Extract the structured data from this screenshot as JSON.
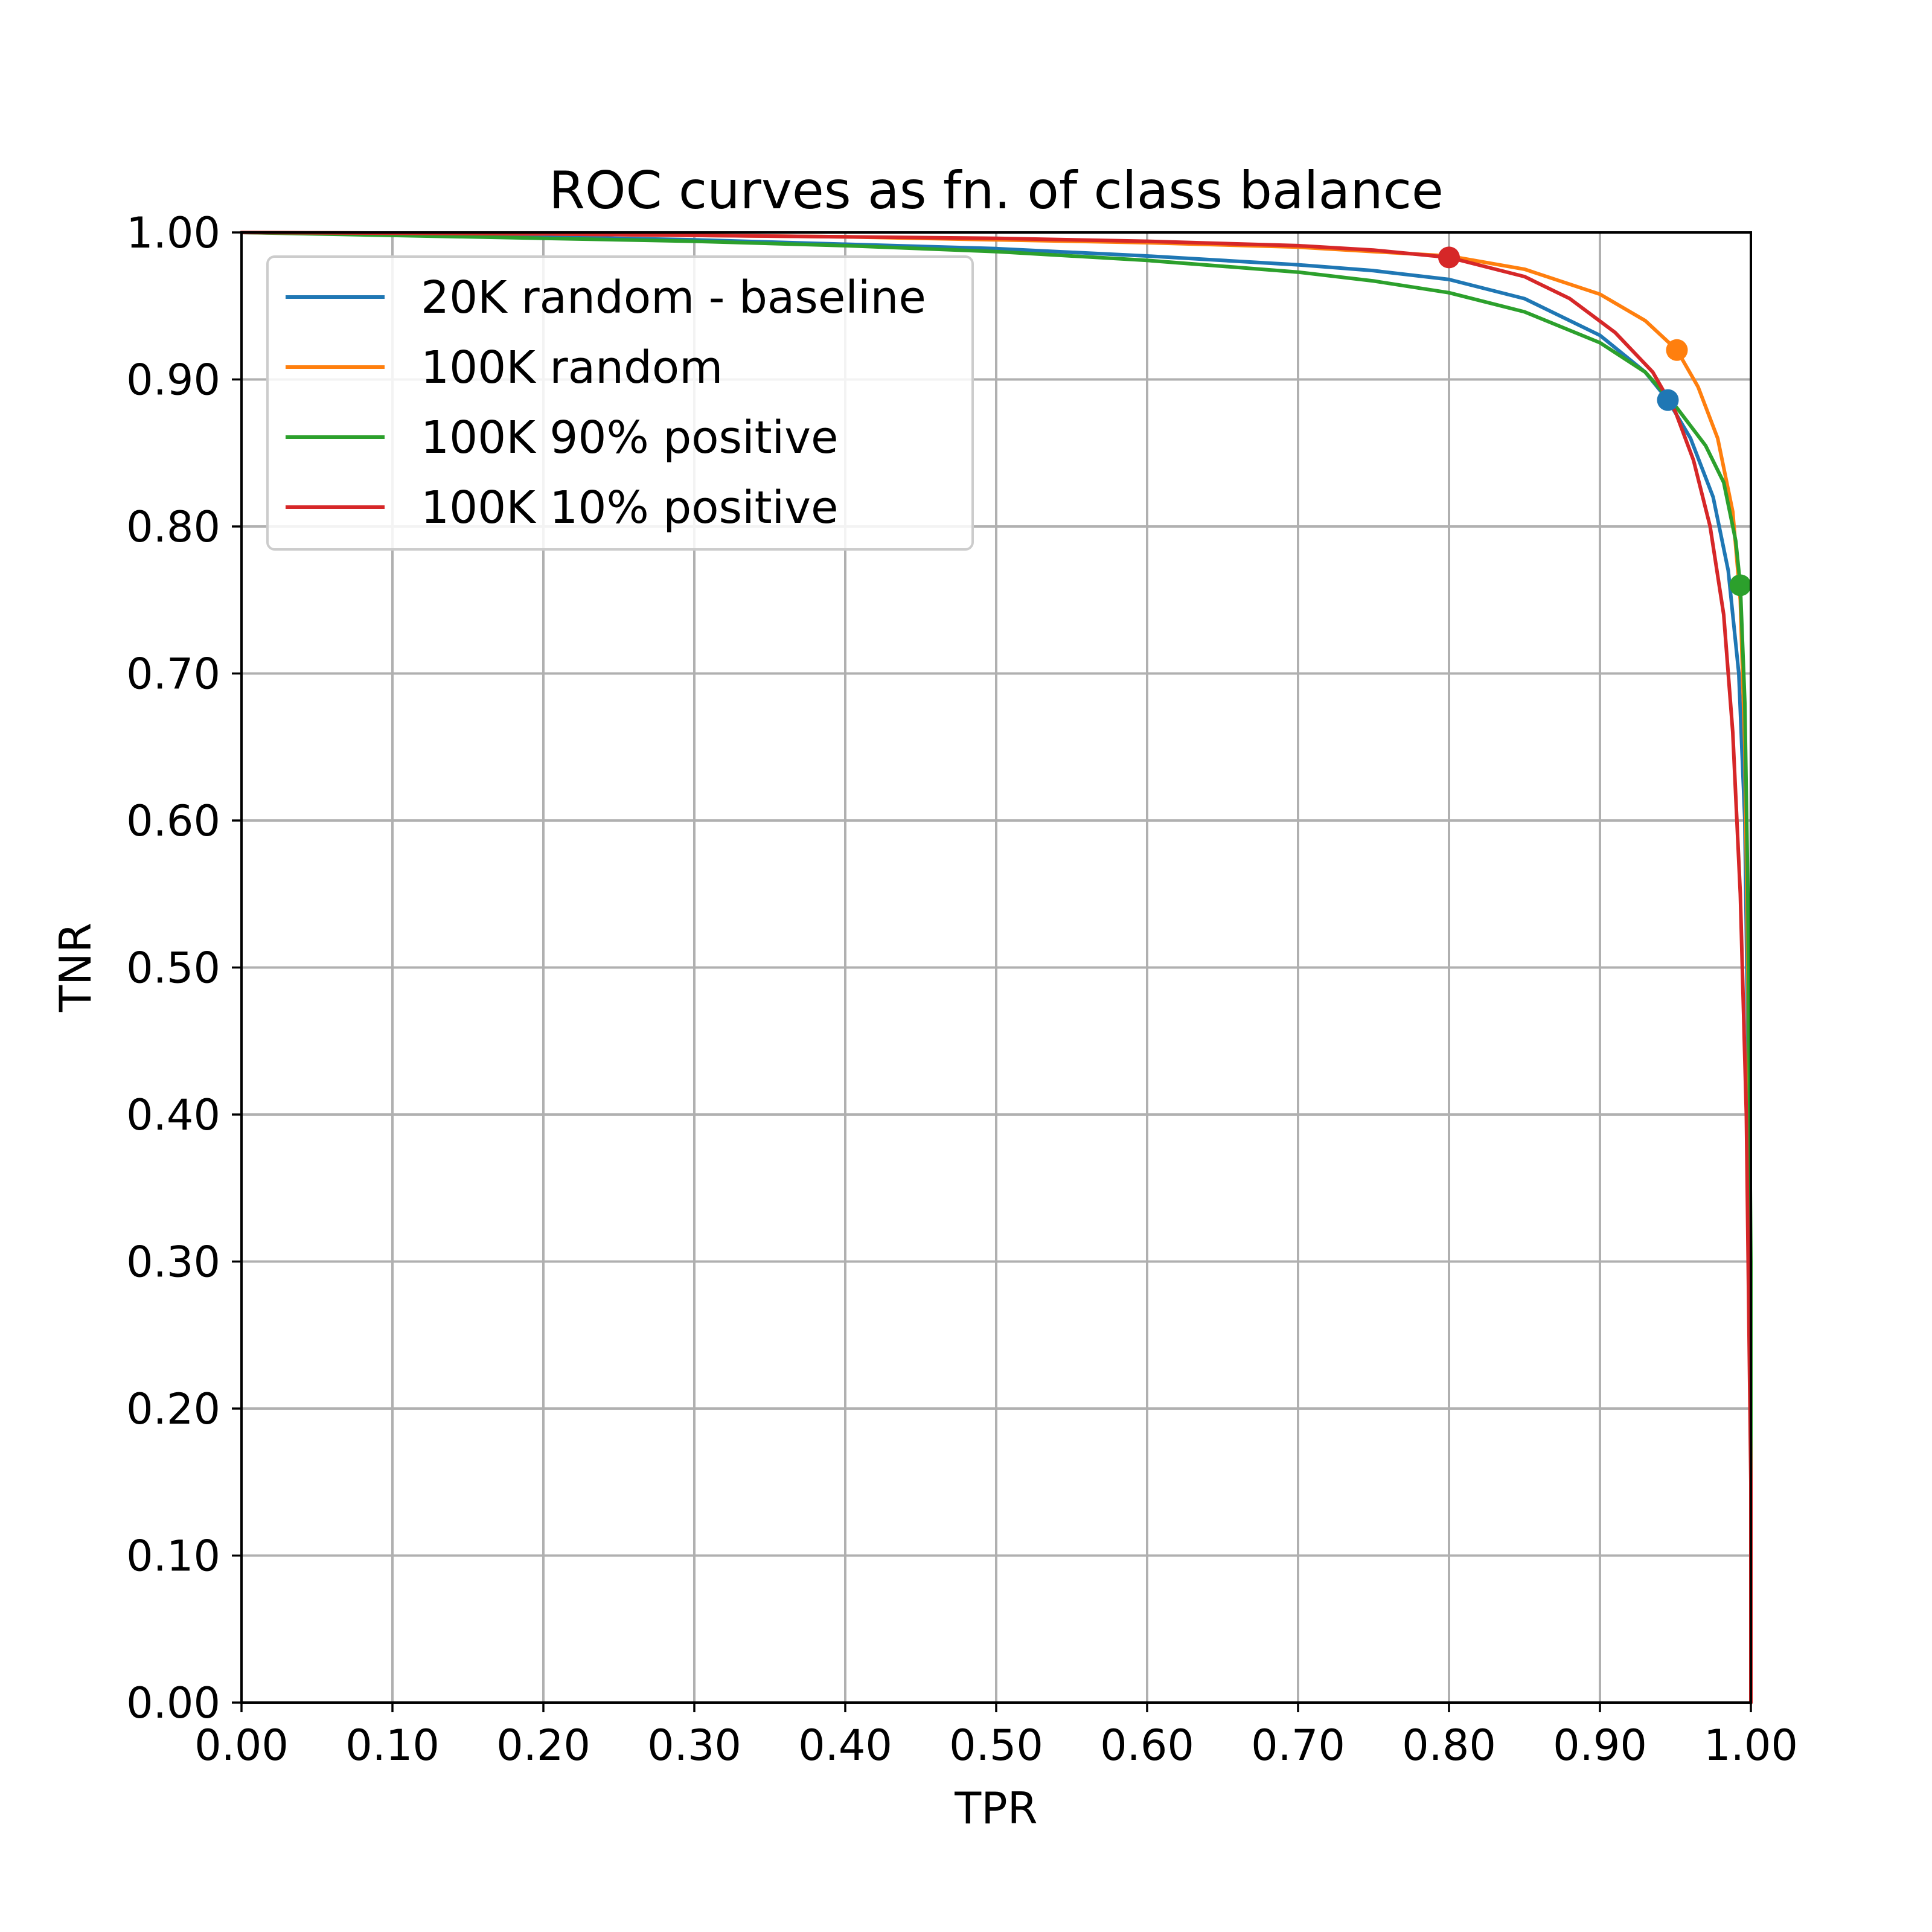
{
  "chart_data": {
    "type": "line",
    "title": "ROC curves as fn. of class balance",
    "xlabel": "TPR",
    "ylabel": "TNR",
    "xlim": [
      0,
      1
    ],
    "ylim": [
      0,
      1
    ],
    "xticks": [
      "0.00",
      "0.10",
      "0.20",
      "0.30",
      "0.40",
      "0.50",
      "0.60",
      "0.70",
      "0.80",
      "0.90",
      "1.00"
    ],
    "yticks": [
      "0.00",
      "0.10",
      "0.20",
      "0.30",
      "0.40",
      "0.50",
      "0.60",
      "0.70",
      "0.80",
      "0.90",
      "1.00"
    ],
    "grid": true,
    "legend_position": "top-left",
    "series": [
      {
        "name": "20K random - baseline",
        "color": "#1f77b4",
        "x": [
          0,
          0.1,
          0.2,
          0.3,
          0.4,
          0.5,
          0.6,
          0.7,
          0.75,
          0.8,
          0.85,
          0.9,
          0.93,
          0.945,
          0.96,
          0.975,
          0.985,
          0.992,
          0.996,
          0.998,
          1.0,
          1.0
        ],
        "y": [
          1.0,
          0.9985,
          0.997,
          0.995,
          0.992,
          0.989,
          0.984,
          0.978,
          0.974,
          0.968,
          0.955,
          0.93,
          0.905,
          0.886,
          0.86,
          0.82,
          0.77,
          0.7,
          0.6,
          0.45,
          0.2,
          0.0
        ],
        "marker": {
          "x": 0.945,
          "y": 0.886
        }
      },
      {
        "name": "100K random",
        "color": "#ff7f0e",
        "x": [
          0,
          0.1,
          0.2,
          0.3,
          0.4,
          0.5,
          0.6,
          0.7,
          0.75,
          0.8,
          0.85,
          0.9,
          0.93,
          0.951,
          0.965,
          0.978,
          0.988,
          0.993,
          0.996,
          0.998,
          1.0,
          1.0
        ],
        "y": [
          1.0,
          0.9995,
          0.999,
          0.998,
          0.997,
          0.995,
          0.993,
          0.99,
          0.987,
          0.984,
          0.975,
          0.958,
          0.94,
          0.92,
          0.895,
          0.86,
          0.81,
          0.75,
          0.65,
          0.5,
          0.25,
          0.0
        ],
        "marker": {
          "x": 0.951,
          "y": 0.92
        }
      },
      {
        "name": "100K 90% positive",
        "color": "#2ca02c",
        "x": [
          0,
          0.1,
          0.2,
          0.3,
          0.4,
          0.5,
          0.6,
          0.7,
          0.75,
          0.8,
          0.85,
          0.9,
          0.93,
          0.95,
          0.97,
          0.982,
          0.99,
          0.993,
          0.996,
          0.998,
          1.0,
          1.0
        ],
        "y": [
          1.0,
          0.998,
          0.996,
          0.994,
          0.991,
          0.987,
          0.981,
          0.973,
          0.967,
          0.959,
          0.946,
          0.925,
          0.905,
          0.882,
          0.855,
          0.83,
          0.79,
          0.76,
          0.68,
          0.55,
          0.3,
          0.0
        ],
        "marker": {
          "x": 0.993,
          "y": 0.76
        }
      },
      {
        "name": "100K 10% positive",
        "color": "#d62728",
        "x": [
          0,
          0.1,
          0.2,
          0.3,
          0.4,
          0.5,
          0.6,
          0.7,
          0.75,
          0.8,
          0.85,
          0.88,
          0.91,
          0.935,
          0.95,
          0.962,
          0.973,
          0.982,
          0.988,
          0.993,
          0.997,
          1.0,
          1.0
        ],
        "y": [
          1.0,
          0.9995,
          0.999,
          0.998,
          0.997,
          0.996,
          0.994,
          0.991,
          0.988,
          0.983,
          0.97,
          0.955,
          0.932,
          0.905,
          0.878,
          0.845,
          0.8,
          0.74,
          0.66,
          0.55,
          0.4,
          0.15,
          0.0
        ],
        "marker": {
          "x": 0.8,
          "y": 0.983
        }
      }
    ]
  }
}
